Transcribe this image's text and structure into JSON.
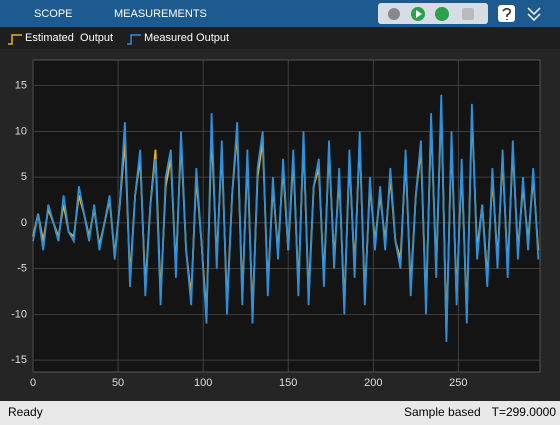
{
  "ui": {
    "tabs": [
      "SCOPE",
      "MEASUREMENTS"
    ],
    "status": {
      "left": "Ready",
      "mode": "Sample based",
      "time": "T=299.0000"
    }
  },
  "chart_data": {
    "type": "line",
    "x": [
      0,
      3,
      6,
      9,
      12,
      15,
      18,
      21,
      24,
      27,
      30,
      33,
      36,
      39,
      42,
      45,
      48,
      51,
      54,
      57,
      60,
      63,
      66,
      69,
      72,
      75,
      78,
      81,
      84,
      87,
      90,
      93,
      96,
      99,
      102,
      105,
      108,
      111,
      114,
      117,
      120,
      123,
      126,
      129,
      132,
      135,
      138,
      141,
      144,
      147,
      150,
      153,
      156,
      159,
      162,
      165,
      168,
      171,
      174,
      177,
      180,
      183,
      186,
      189,
      192,
      195,
      198,
      201,
      204,
      207,
      210,
      213,
      216,
      219,
      222,
      225,
      228,
      231,
      234,
      237,
      240,
      243,
      246,
      249,
      252,
      255,
      258,
      261,
      264,
      267,
      270,
      273,
      276,
      279,
      282,
      285,
      288,
      291,
      294,
      297
    ],
    "series": [
      {
        "name": "Estimated  Output",
        "color": "#edb120",
        "values": [
          -1.5,
          1,
          -2,
          1.5,
          0,
          -1.5,
          2,
          -1,
          -1.5,
          3,
          1,
          -1.5,
          1.5,
          -2.5,
          0,
          2.5,
          -3.5,
          2,
          9,
          -6,
          3,
          7,
          -7,
          2,
          8,
          -8,
          4,
          7,
          -5,
          9,
          -3,
          -8,
          5,
          -2,
          -10,
          10,
          -4,
          8,
          -9,
          3,
          10,
          -8,
          7,
          -10,
          5,
          9,
          -7,
          4,
          -3,
          6,
          -3,
          7,
          -7,
          9,
          -8,
          4,
          6,
          -6,
          8,
          -4,
          5,
          -9,
          7,
          -5,
          9,
          -8,
          4,
          -2,
          3,
          -2,
          5,
          -2,
          -4,
          7,
          -7,
          3,
          8,
          -9,
          11,
          -5,
          13,
          -12,
          9,
          -8,
          6,
          -10,
          12,
          -3,
          2,
          -6,
          5,
          -4,
          7,
          -5,
          8,
          -3,
          4,
          -2,
          5,
          -3
        ]
      },
      {
        "name": "Measured Output",
        "color": "#2f8fd8",
        "values": [
          -2,
          1,
          -3,
          2,
          0,
          -2,
          3,
          -1,
          -2,
          4,
          1,
          -2,
          2,
          -3,
          0,
          3,
          -4,
          2,
          11,
          -7,
          3,
          8,
          -8,
          2,
          7,
          -9,
          5,
          8,
          -6,
          10,
          -3,
          -9,
          6,
          -2,
          -11,
          12,
          -5,
          9,
          -10,
          3,
          11,
          -9,
          8,
          -11,
          6,
          10,
          -8,
          5,
          -4,
          7,
          -3,
          8,
          -8,
          10,
          -9,
          4,
          7,
          -7,
          9,
          -5,
          6,
          -10,
          8,
          -6,
          10,
          -9,
          5,
          -3,
          4,
          -3,
          6,
          -2,
          -5,
          8,
          -8,
          3,
          9,
          -10,
          12,
          -6,
          14,
          -13,
          10,
          -9,
          7,
          -11,
          13,
          -4,
          2,
          -7,
          6,
          -5,
          8,
          -6,
          9,
          -4,
          5,
          -3,
          6,
          -4
        ]
      }
    ],
    "xlim": [
      0,
      298
    ],
    "ylim": [
      -16.3,
      17.8
    ],
    "xticks": [
      0,
      50,
      100,
      150,
      200,
      250
    ],
    "yticks": [
      -15,
      -10,
      -5,
      0,
      5,
      10,
      15
    ],
    "grid": true
  }
}
